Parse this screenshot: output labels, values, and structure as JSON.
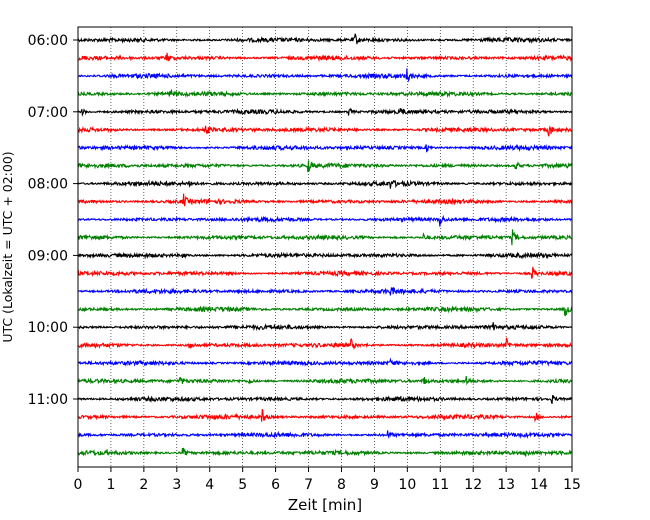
{
  "chart_data": {
    "type": "line",
    "subtype": "helicorder",
    "xlabel": "Zeit  [min]",
    "ylabel": "UTC (Lokalzeit = UTC + 02:00)",
    "xlim": [
      0,
      15
    ],
    "x_ticks": [
      "0",
      "1",
      "2",
      "3",
      "4",
      "5",
      "6",
      "7",
      "8",
      "9",
      "10",
      "11",
      "12",
      "13",
      "14",
      "15"
    ],
    "y_ticks": [
      {
        "label": "06:00",
        "trace": 0
      },
      {
        "label": "07:00",
        "trace": 4
      },
      {
        "label": "08:00",
        "trace": 8
      },
      {
        "label": "09:00",
        "trace": 12
      },
      {
        "label": "10:00",
        "trace": 16
      },
      {
        "label": "11:00",
        "trace": 20
      }
    ],
    "trace_minutes": 15,
    "trace_count": 24,
    "grid": "vertical dotted at each minute",
    "trace_colors": [
      "#000000",
      "#ff0000",
      "#0000ff",
      "#008000"
    ],
    "events": [
      {
        "trace": 0,
        "minute": 8.4,
        "amp": 1.0
      },
      {
        "trace": 1,
        "minute": 2.7,
        "amp": 0.7
      },
      {
        "trace": 2,
        "minute": 10.0,
        "amp": 0.9
      },
      {
        "trace": 3,
        "minute": 2.8,
        "amp": 0.6
      },
      {
        "trace": 4,
        "minute": 0.1,
        "amp": 0.6
      },
      {
        "trace": 4,
        "minute": 8.2,
        "amp": 0.8
      },
      {
        "trace": 4,
        "minute": 9.8,
        "amp": 0.5
      },
      {
        "trace": 5,
        "minute": 3.9,
        "amp": 0.5
      },
      {
        "trace": 5,
        "minute": 14.3,
        "amp": 1.0
      },
      {
        "trace": 6,
        "minute": 10.6,
        "amp": 0.5
      },
      {
        "trace": 7,
        "minute": 7.0,
        "amp": 0.8
      },
      {
        "trace": 7,
        "minute": 13.3,
        "amp": 0.6
      },
      {
        "trace": 8,
        "minute": 3.4,
        "amp": 0.5
      },
      {
        "trace": 8,
        "minute": 9.5,
        "amp": 0.5
      },
      {
        "trace": 9,
        "minute": 3.2,
        "amp": 0.9
      },
      {
        "trace": 10,
        "minute": 11.0,
        "amp": 0.9
      },
      {
        "trace": 11,
        "minute": 13.2,
        "amp": 0.9
      },
      {
        "trace": 11,
        "minute": 10.5,
        "amp": 0.4
      },
      {
        "trace": 12,
        "minute": 3.2,
        "amp": 0.4
      },
      {
        "trace": 13,
        "minute": 13.8,
        "amp": 0.9
      },
      {
        "trace": 14,
        "minute": 9.5,
        "amp": 0.5
      },
      {
        "trace": 15,
        "minute": 14.8,
        "amp": 1.0
      },
      {
        "trace": 16,
        "minute": 12.6,
        "amp": 0.5
      },
      {
        "trace": 17,
        "minute": 3.4,
        "amp": 0.9
      },
      {
        "trace": 17,
        "minute": 8.3,
        "amp": 0.6
      },
      {
        "trace": 17,
        "minute": 13.0,
        "amp": 0.9
      },
      {
        "trace": 18,
        "minute": 9.5,
        "amp": 0.4
      },
      {
        "trace": 19,
        "minute": 3.1,
        "amp": 0.5
      },
      {
        "trace": 19,
        "minute": 5.2,
        "amp": 0.5
      },
      {
        "trace": 19,
        "minute": 10.5,
        "amp": 0.6
      },
      {
        "trace": 19,
        "minute": 11.8,
        "amp": 0.5
      },
      {
        "trace": 20,
        "minute": 14.4,
        "amp": 0.5
      },
      {
        "trace": 21,
        "minute": 5.6,
        "amp": 0.9
      },
      {
        "trace": 21,
        "minute": 13.9,
        "amp": 0.7
      },
      {
        "trace": 22,
        "minute": 9.4,
        "amp": 0.5
      },
      {
        "trace": 23,
        "minute": 3.2,
        "amp": 0.6
      },
      {
        "trace": 23,
        "minute": 13.6,
        "amp": 0.5
      }
    ]
  }
}
